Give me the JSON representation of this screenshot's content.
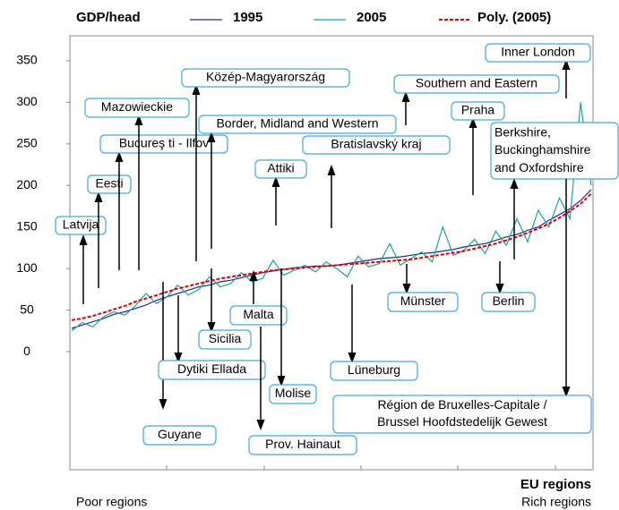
{
  "chart_data": {
    "type": "line",
    "legend_title": "GDP/head",
    "x_label": "EU regions",
    "x_left_note": "Poor regions",
    "x_right_note": "Rich regions",
    "categories": [
      null,
      null,
      null,
      null,
      null,
      null,
      null,
      null,
      null,
      null,
      null,
      null,
      null,
      null,
      null,
      null,
      null,
      null,
      null,
      null,
      null,
      null,
      null,
      null,
      null,
      null,
      null,
      null,
      null,
      null,
      null,
      null,
      null,
      null,
      null,
      null,
      null,
      null,
      null,
      null,
      null,
      null,
      null,
      null,
      null,
      null,
      null,
      null,
      null,
      null
    ],
    "ylim": [
      -142,
      380
    ],
    "yticks": [
      0,
      50,
      100,
      150,
      200,
      250,
      300,
      350
    ],
    "series": [
      {
        "name": "1995",
        "color": "#1f2a8f",
        "dash": false,
        "values": [
          28,
          32,
          36,
          40,
          45,
          48,
          52,
          56,
          62,
          66,
          70,
          74,
          78,
          80,
          84,
          86,
          89,
          92,
          95,
          97,
          99,
          101,
          102,
          103,
          103,
          104,
          106,
          108,
          110,
          112,
          113,
          114,
          116,
          118,
          119,
          121,
          123,
          126,
          128,
          130,
          134,
          138,
          141,
          146,
          150,
          158,
          165,
          172,
          182,
          195
        ]
      },
      {
        "name": "2005",
        "color": "#1aa39a",
        "dash": false,
        "values": [
          25,
          35,
          30,
          42,
          48,
          44,
          55,
          70,
          58,
          66,
          80,
          68,
          75,
          90,
          78,
          82,
          95,
          84,
          88,
          110,
          92,
          98,
          104,
          96,
          108,
          100,
          90,
          115,
          102,
          106,
          130,
          104,
          112,
          120,
          108,
          150,
          116,
          122,
          135,
          118,
          145,
          128,
          160,
          132,
          170,
          150,
          185,
          160,
          300,
          200
        ]
      },
      {
        "name": "Poly. (2005)",
        "color": "#e00000",
        "dash": true,
        "values": [
          38,
          40,
          43,
          47,
          51,
          55,
          60,
          64,
          68,
          72,
          76,
          79,
          82,
          85,
          88,
          90,
          92,
          94,
          96,
          98,
          99,
          100,
          101,
          102,
          103,
          104,
          105,
          106,
          107,
          108,
          109,
          110,
          111,
          113,
          115,
          117,
          119,
          121,
          124,
          127,
          130,
          134,
          138,
          143,
          148,
          154,
          161,
          169,
          178,
          190
        ]
      }
    ],
    "annotations": [
      {
        "lines": [
          "Latvija"
        ]
      },
      {
        "lines": [
          "Eesti"
        ]
      },
      {
        "lines": [
          "Bucureş ti - Ilfov"
        ]
      },
      {
        "lines": [
          "Mazowieckie"
        ]
      },
      {
        "lines": [
          "Közép-Magyarország"
        ]
      },
      {
        "lines": [
          "Border, Midland and Western"
        ]
      },
      {
        "lines": [
          "Attiki"
        ]
      },
      {
        "lines": [
          "Bratislavský kraj"
        ]
      },
      {
        "lines": [
          "Southern and Eastern"
        ]
      },
      {
        "lines": [
          "Praha"
        ]
      },
      {
        "lines": [
          "Inner London"
        ]
      },
      {
        "lines": [
          "Berkshire,",
          "Buckinghamshire",
          "and Oxfordshire"
        ]
      },
      {
        "lines": [
          "Guyane"
        ]
      },
      {
        "lines": [
          "Dytiki Ellada"
        ]
      },
      {
        "lines": [
          "Sicilia"
        ]
      },
      {
        "lines": [
          "Malta"
        ]
      },
      {
        "lines": [
          "Molise"
        ]
      },
      {
        "lines": [
          "Prov. Hainaut"
        ]
      },
      {
        "lines": [
          "Lüneburg"
        ]
      },
      {
        "lines": [
          "Münster"
        ]
      },
      {
        "lines": [
          "Berlin"
        ]
      },
      {
        "lines": [
          "Région de Bruxelles-Capitale /",
          "Brussel Hoofdstedelijk Gewest"
        ]
      }
    ]
  }
}
